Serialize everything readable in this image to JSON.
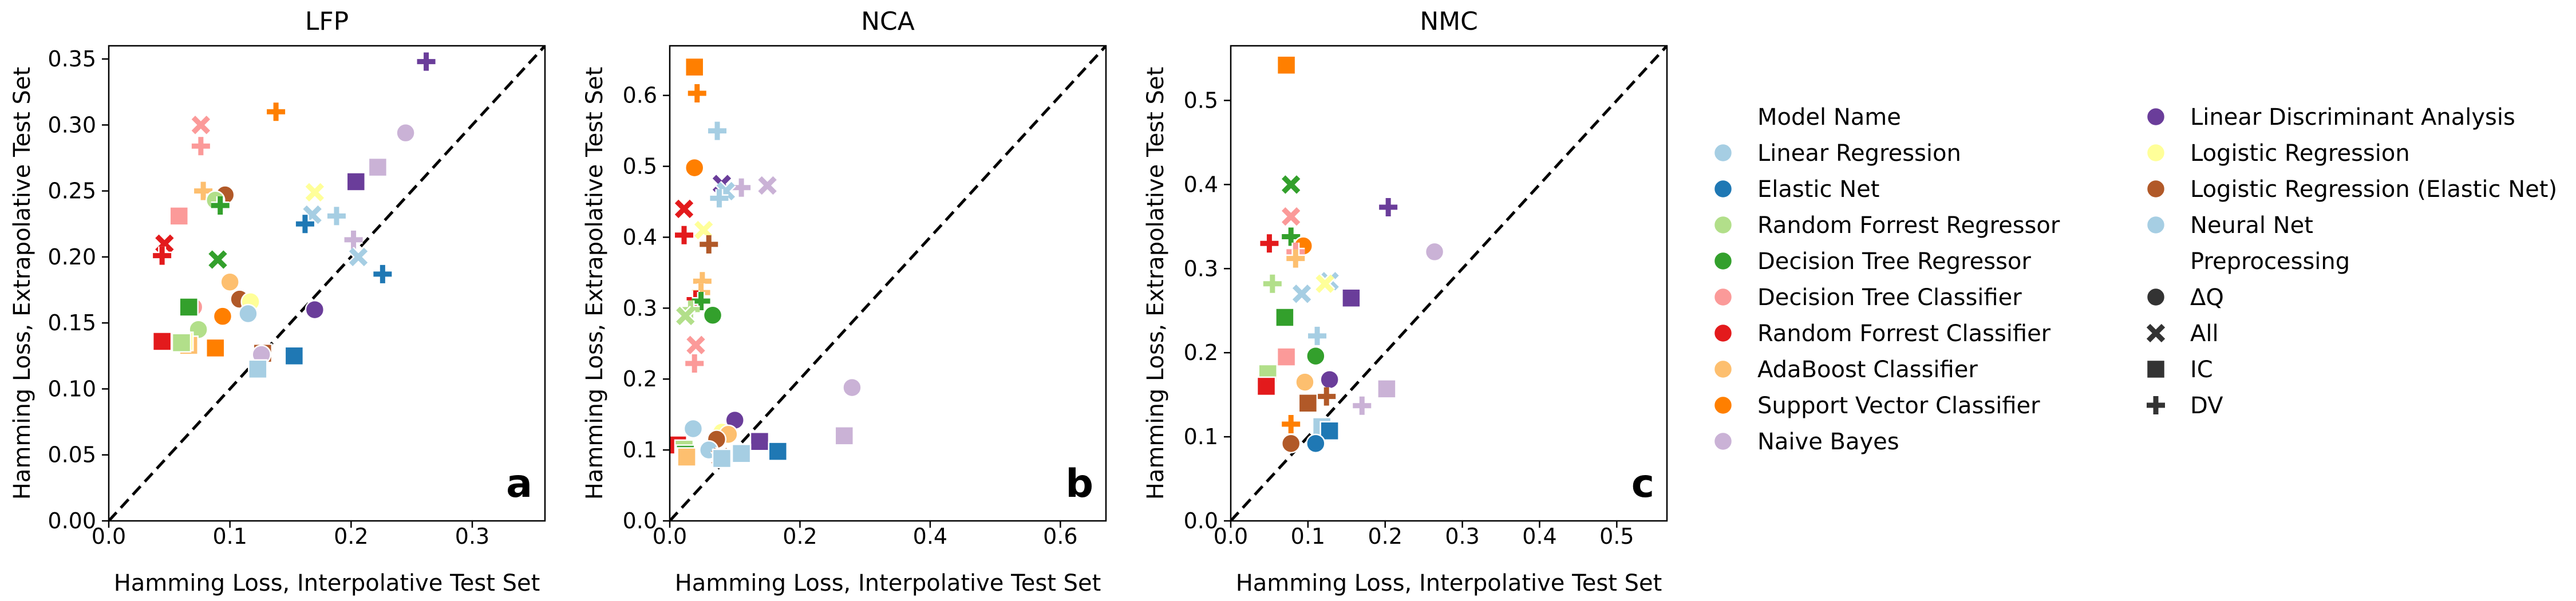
{
  "figure": {
    "legend": {
      "model_header": "Model Name",
      "preprocessing_header": "Preprocessing",
      "models": [
        {
          "name": "Linear Regression",
          "color": "#a6cee3"
        },
        {
          "name": "Elastic Net",
          "color": "#1f78b4"
        },
        {
          "name": "Random Forrest Regressor",
          "color": "#b2df8a"
        },
        {
          "name": "Decision Tree Regressor",
          "color": "#33a02c"
        },
        {
          "name": "Decision Tree Classifier",
          "color": "#fb9a99"
        },
        {
          "name": "Random Forrest Classifier",
          "color": "#e31a1c"
        },
        {
          "name": "AdaBoost Classifier",
          "color": "#fdbf6f"
        },
        {
          "name": "Support Vector Classifier",
          "color": "#ff7f00"
        },
        {
          "name": "Naive Bayes",
          "color": "#cab2d6"
        },
        {
          "name": "Linear Discriminant Analysis",
          "color": "#6a3d9a"
        },
        {
          "name": "Logistic Regression",
          "color": "#ffff99"
        },
        {
          "name": "Logistic Regression (Elastic Net)",
          "color": "#b15928"
        },
        {
          "name": "Neural Net",
          "color": "#a6cee3"
        }
      ],
      "preprocessing": [
        {
          "name": "ΔQ",
          "marker": "circle"
        },
        {
          "name": "All",
          "marker": "x"
        },
        {
          "name": "IC",
          "marker": "square"
        },
        {
          "name": "DV",
          "marker": "plus"
        }
      ]
    }
  },
  "chart_data": [
    {
      "type": "scatter",
      "title": "LFP",
      "panel_label": "a",
      "xlabel": "Hamming Loss, Interpolative Test Set",
      "ylabel": "Hamming Loss, Extrapolative Test Set",
      "xlim": [
        0,
        0.36
      ],
      "ylim": [
        0,
        0.36
      ],
      "xticks": [
        0.0,
        0.1,
        0.2,
        0.3
      ],
      "xtick_labels": [
        "0.0",
        "0.1",
        "0.2",
        "0.3"
      ],
      "yticks": [
        0.0,
        0.05,
        0.1,
        0.15,
        0.2,
        0.25,
        0.3,
        0.35
      ],
      "ytick_labels": [
        "0.00",
        "0.05",
        "0.10",
        "0.15",
        "0.20",
        "0.25",
        "0.30",
        "0.35"
      ],
      "diagonal": true,
      "points": [
        {
          "model": 9,
          "pre": "plus",
          "x": 0.262,
          "y": 0.348
        },
        {
          "model": 8,
          "pre": "circle",
          "x": 0.245,
          "y": 0.294
        },
        {
          "model": 8,
          "pre": "square",
          "x": 0.222,
          "y": 0.268
        },
        {
          "model": 9,
          "pre": "square",
          "x": 0.204,
          "y": 0.257
        },
        {
          "model": 7,
          "pre": "plus",
          "x": 0.138,
          "y": 0.31
        },
        {
          "model": 4,
          "pre": "x",
          "x": 0.076,
          "y": 0.3
        },
        {
          "model": 4,
          "pre": "plus",
          "x": 0.076,
          "y": 0.284
        },
        {
          "model": 10,
          "pre": "x",
          "x": 0.17,
          "y": 0.249
        },
        {
          "model": 6,
          "pre": "plus",
          "x": 0.078,
          "y": 0.25
        },
        {
          "model": 11,
          "pre": "circle",
          "x": 0.096,
          "y": 0.247
        },
        {
          "model": 2,
          "pre": "circle",
          "x": 0.088,
          "y": 0.243
        },
        {
          "model": 3,
          "pre": "plus",
          "x": 0.092,
          "y": 0.239
        },
        {
          "model": 4,
          "pre": "square",
          "x": 0.058,
          "y": 0.231
        },
        {
          "model": 12,
          "pre": "plus",
          "x": 0.188,
          "y": 0.231
        },
        {
          "model": 0,
          "pre": "x",
          "x": 0.168,
          "y": 0.232
        },
        {
          "model": 1,
          "pre": "plus",
          "x": 0.162,
          "y": 0.225
        },
        {
          "model": 8,
          "pre": "plus",
          "x": 0.202,
          "y": 0.213
        },
        {
          "model": 5,
          "pre": "x",
          "x": 0.046,
          "y": 0.21
        },
        {
          "model": 5,
          "pre": "plus",
          "x": 0.044,
          "y": 0.201
        },
        {
          "model": 12,
          "pre": "x",
          "x": 0.206,
          "y": 0.2
        },
        {
          "model": 3,
          "pre": "x",
          "x": 0.09,
          "y": 0.198
        },
        {
          "model": 1,
          "pre": "plus",
          "x": 0.226,
          "y": 0.187
        },
        {
          "model": 6,
          "pre": "circle",
          "x": 0.1,
          "y": 0.181
        },
        {
          "model": 11,
          "pre": "circle",
          "x": 0.108,
          "y": 0.168
        },
        {
          "model": 10,
          "pre": "circle",
          "x": 0.117,
          "y": 0.166
        },
        {
          "model": 4,
          "pre": "circle",
          "x": 0.07,
          "y": 0.162
        },
        {
          "model": 3,
          "pre": "square",
          "x": 0.066,
          "y": 0.162
        },
        {
          "model": 9,
          "pre": "circle",
          "x": 0.17,
          "y": 0.16
        },
        {
          "model": 12,
          "pre": "circle",
          "x": 0.115,
          "y": 0.157
        },
        {
          "model": 7,
          "pre": "circle",
          "x": 0.094,
          "y": 0.155
        },
        {
          "model": 2,
          "pre": "circle",
          "x": 0.074,
          "y": 0.145
        },
        {
          "model": 5,
          "pre": "square",
          "x": 0.044,
          "y": 0.136
        },
        {
          "model": 6,
          "pre": "square",
          "x": 0.066,
          "y": 0.133
        },
        {
          "model": 10,
          "pre": "square",
          "x": 0.062,
          "y": 0.136
        },
        {
          "model": 2,
          "pre": "square",
          "x": 0.06,
          "y": 0.135
        },
        {
          "model": 7,
          "pre": "square",
          "x": 0.088,
          "y": 0.131
        },
        {
          "model": 1,
          "pre": "square",
          "x": 0.153,
          "y": 0.125
        },
        {
          "model": 11,
          "pre": "square",
          "x": 0.127,
          "y": 0.127
        },
        {
          "model": 8,
          "pre": "circle",
          "x": 0.126,
          "y": 0.126
        },
        {
          "model": 0,
          "pre": "square",
          "x": 0.123,
          "y": 0.115
        }
      ]
    },
    {
      "type": "scatter",
      "title": "NCA",
      "panel_label": "b",
      "xlabel": "Hamming Loss, Interpolative Test Set",
      "ylabel": "Hamming Loss, Extrapolative Test Set",
      "xlim": [
        0,
        0.67
      ],
      "ylim": [
        0,
        0.67
      ],
      "xticks": [
        0.0,
        0.2,
        0.4,
        0.6
      ],
      "xtick_labels": [
        "0.0",
        "0.2",
        "0.4",
        "0.6"
      ],
      "yticks": [
        0.0,
        0.1,
        0.2,
        0.3,
        0.4,
        0.5,
        0.6
      ],
      "ytick_labels": [
        "0.0",
        "0.1",
        "0.2",
        "0.3",
        "0.4",
        "0.5",
        "0.6"
      ],
      "diagonal": true,
      "points": [
        {
          "model": 7,
          "pre": "square",
          "x": 0.038,
          "y": 0.64
        },
        {
          "model": 7,
          "pre": "plus",
          "x": 0.042,
          "y": 0.603
        },
        {
          "model": 12,
          "pre": "plus",
          "x": 0.073,
          "y": 0.55
        },
        {
          "model": 7,
          "pre": "circle",
          "x": 0.038,
          "y": 0.498
        },
        {
          "model": 9,
          "pre": "x",
          "x": 0.08,
          "y": 0.475
        },
        {
          "model": 8,
          "pre": "x",
          "x": 0.15,
          "y": 0.473
        },
        {
          "model": 8,
          "pre": "plus",
          "x": 0.11,
          "y": 0.47
        },
        {
          "model": 0,
          "pre": "x",
          "x": 0.086,
          "y": 0.465
        },
        {
          "model": 12,
          "pre": "plus",
          "x": 0.076,
          "y": 0.455
        },
        {
          "model": 5,
          "pre": "x",
          "x": 0.022,
          "y": 0.44
        },
        {
          "model": 10,
          "pre": "x",
          "x": 0.052,
          "y": 0.41
        },
        {
          "model": 5,
          "pre": "plus",
          "x": 0.022,
          "y": 0.403
        },
        {
          "model": 11,
          "pre": "plus",
          "x": 0.06,
          "y": 0.39
        },
        {
          "model": 6,
          "pre": "plus",
          "x": 0.05,
          "y": 0.338
        },
        {
          "model": 6,
          "pre": "plus",
          "x": 0.048,
          "y": 0.322
        },
        {
          "model": 5,
          "pre": "plus",
          "x": 0.04,
          "y": 0.312
        },
        {
          "model": 3,
          "pre": "plus",
          "x": 0.048,
          "y": 0.31
        },
        {
          "model": 2,
          "pre": "plus",
          "x": 0.032,
          "y": 0.298
        },
        {
          "model": 3,
          "pre": "circle",
          "x": 0.066,
          "y": 0.29
        },
        {
          "model": 2,
          "pre": "x",
          "x": 0.024,
          "y": 0.289
        },
        {
          "model": 4,
          "pre": "x",
          "x": 0.04,
          "y": 0.248
        },
        {
          "model": 4,
          "pre": "plus",
          "x": 0.038,
          "y": 0.222
        },
        {
          "model": 8,
          "pre": "circle",
          "x": 0.28,
          "y": 0.188
        },
        {
          "model": 9,
          "pre": "circle",
          "x": 0.1,
          "y": 0.142
        },
        {
          "model": 0,
          "pre": "circle",
          "x": 0.036,
          "y": 0.13
        },
        {
          "model": 10,
          "pre": "circle",
          "x": 0.08,
          "y": 0.125
        },
        {
          "model": 6,
          "pre": "circle",
          "x": 0.09,
          "y": 0.122
        },
        {
          "model": 8,
          "pre": "square",
          "x": 0.268,
          "y": 0.12
        },
        {
          "model": 11,
          "pre": "circle",
          "x": 0.072,
          "y": 0.115
        },
        {
          "model": 9,
          "pre": "square",
          "x": 0.138,
          "y": 0.112
        },
        {
          "model": 5,
          "pre": "square",
          "x": 0.012,
          "y": 0.107
        },
        {
          "model": 2,
          "pre": "square",
          "x": 0.022,
          "y": 0.101
        },
        {
          "model": 12,
          "pre": "circle",
          "x": 0.06,
          "y": 0.1
        },
        {
          "model": 1,
          "pre": "square",
          "x": 0.166,
          "y": 0.098
        },
        {
          "model": 3,
          "pre": "square",
          "x": 0.024,
          "y": 0.094
        },
        {
          "model": 0,
          "pre": "square",
          "x": 0.11,
          "y": 0.095
        },
        {
          "model": 6,
          "pre": "square",
          "x": 0.026,
          "y": 0.09
        },
        {
          "model": 11,
          "pre": "x",
          "x": 0.078,
          "y": 0.09
        },
        {
          "model": 0,
          "pre": "square",
          "x": 0.08,
          "y": 0.088
        }
      ]
    },
    {
      "type": "scatter",
      "title": "NMC",
      "panel_label": "c",
      "xlabel": "Hamming Loss, Interpolative Test Set",
      "ylabel": "Hamming Loss, Extrapolative Test Set",
      "xlim": [
        0,
        0.565
      ],
      "ylim": [
        0,
        0.565
      ],
      "xticks": [
        0.0,
        0.1,
        0.2,
        0.3,
        0.4,
        0.5
      ],
      "xtick_labels": [
        "0.0",
        "0.1",
        "0.2",
        "0.3",
        "0.4",
        "0.5"
      ],
      "yticks": [
        0.0,
        0.1,
        0.2,
        0.3,
        0.4,
        0.5
      ],
      "ytick_labels": [
        "0.0",
        "0.1",
        "0.2",
        "0.3",
        "0.4",
        "0.5"
      ],
      "diagonal": true,
      "points": [
        {
          "model": 7,
          "pre": "square",
          "x": 0.072,
          "y": 0.542
        },
        {
          "model": 3,
          "pre": "x",
          "x": 0.078,
          "y": 0.4
        },
        {
          "model": 9,
          "pre": "plus",
          "x": 0.204,
          "y": 0.373
        },
        {
          "model": 4,
          "pre": "x",
          "x": 0.078,
          "y": 0.362
        },
        {
          "model": 3,
          "pre": "plus",
          "x": 0.078,
          "y": 0.338
        },
        {
          "model": 5,
          "pre": "plus",
          "x": 0.05,
          "y": 0.33
        },
        {
          "model": 7,
          "pre": "circle",
          "x": 0.094,
          "y": 0.327
        },
        {
          "model": 8,
          "pre": "circle",
          "x": 0.264,
          "y": 0.32
        },
        {
          "model": 4,
          "pre": "plus",
          "x": 0.084,
          "y": 0.32
        },
        {
          "model": 6,
          "pre": "plus",
          "x": 0.084,
          "y": 0.312
        },
        {
          "model": 12,
          "pre": "x",
          "x": 0.128,
          "y": 0.285
        },
        {
          "model": 10,
          "pre": "x",
          "x": 0.122,
          "y": 0.282
        },
        {
          "model": 2,
          "pre": "plus",
          "x": 0.054,
          "y": 0.282
        },
        {
          "model": 0,
          "pre": "x",
          "x": 0.092,
          "y": 0.27
        },
        {
          "model": 9,
          "pre": "square",
          "x": 0.156,
          "y": 0.265
        },
        {
          "model": 3,
          "pre": "square",
          "x": 0.07,
          "y": 0.242
        },
        {
          "model": 12,
          "pre": "plus",
          "x": 0.112,
          "y": 0.22
        },
        {
          "model": 3,
          "pre": "circle",
          "x": 0.11,
          "y": 0.196
        },
        {
          "model": 4,
          "pre": "square",
          "x": 0.072,
          "y": 0.195
        },
        {
          "model": 2,
          "pre": "square",
          "x": 0.048,
          "y": 0.175
        },
        {
          "model": 9,
          "pre": "circle",
          "x": 0.128,
          "y": 0.168
        },
        {
          "model": 6,
          "pre": "circle",
          "x": 0.096,
          "y": 0.165
        },
        {
          "model": 5,
          "pre": "square",
          "x": 0.046,
          "y": 0.16
        },
        {
          "model": 8,
          "pre": "square",
          "x": 0.202,
          "y": 0.157
        },
        {
          "model": 11,
          "pre": "plus",
          "x": 0.124,
          "y": 0.148
        },
        {
          "model": 11,
          "pre": "square",
          "x": 0.1,
          "y": 0.14
        },
        {
          "model": 8,
          "pre": "plus",
          "x": 0.17,
          "y": 0.137
        },
        {
          "model": 7,
          "pre": "plus",
          "x": 0.078,
          "y": 0.115
        },
        {
          "model": 0,
          "pre": "square",
          "x": 0.118,
          "y": 0.112
        },
        {
          "model": 1,
          "pre": "square",
          "x": 0.128,
          "y": 0.107
        },
        {
          "model": 1,
          "pre": "circle",
          "x": 0.11,
          "y": 0.092
        },
        {
          "model": 11,
          "pre": "circle",
          "x": 0.078,
          "y": 0.092
        }
      ]
    }
  ]
}
